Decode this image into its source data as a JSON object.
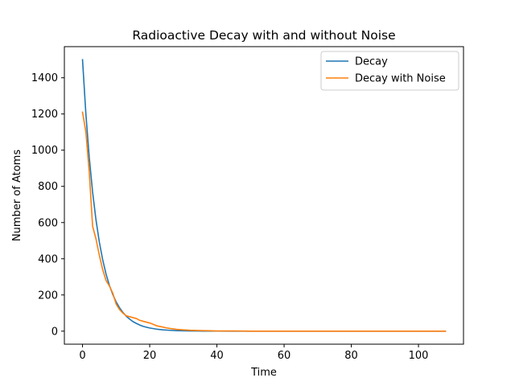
{
  "chart_data": {
    "type": "line",
    "title": "Radioactive Decay with and without Noise",
    "xlabel": "Time",
    "ylabel": "Number of Atoms",
    "xlim": [
      -5.4,
      113.4
    ],
    "ylim": [
      -72,
      1572
    ],
    "xticks": [
      0,
      20,
      40,
      60,
      80,
      100
    ],
    "yticks": [
      0,
      200,
      400,
      600,
      800,
      1000,
      1200,
      1400
    ],
    "grid": false,
    "legend_position": "top-right",
    "series": [
      {
        "name": "Decay",
        "color": "#1f77b4",
        "x": [
          0,
          1,
          2,
          3,
          4,
          5,
          6,
          7,
          8,
          9,
          10,
          11,
          12,
          13,
          14,
          15,
          16,
          17,
          18,
          19,
          20,
          22,
          24,
          26,
          28,
          30,
          32,
          34,
          36,
          38,
          40,
          45,
          50,
          55,
          60,
          70,
          80,
          90,
          100,
          108
        ],
        "y": [
          1500,
          1200,
          961,
          769,
          616,
          493,
          395,
          316,
          253,
          203,
          162,
          130,
          104,
          83,
          67,
          53,
          43,
          34,
          27,
          22,
          17.4,
          11.2,
          7.1,
          4.6,
          2.9,
          1.9,
          1.2,
          0.8,
          0.5,
          0.3,
          0.2,
          0.1,
          0,
          0,
          0,
          0,
          0,
          0,
          0,
          0
        ]
      },
      {
        "name": "Decay with Noise",
        "color": "#ff7f0e",
        "x": [
          0,
          1,
          2,
          3,
          4,
          5,
          6,
          7,
          8,
          9,
          10,
          11,
          12,
          13,
          14,
          15,
          16,
          17,
          18,
          19,
          20,
          21,
          22,
          23,
          24,
          25,
          26,
          28,
          30,
          32,
          34,
          36,
          38,
          40,
          45,
          50,
          55,
          60,
          70,
          80,
          90,
          100,
          108
        ],
        "y": [
          1210,
          1100,
          880,
          580,
          510,
          420,
          340,
          280,
          250,
          210,
          150,
          120,
          100,
          85,
          80,
          75,
          70,
          60,
          55,
          50,
          45,
          38,
          30,
          26,
          22,
          18,
          15,
          10,
          7,
          5,
          4,
          3,
          2,
          1,
          1,
          0,
          0,
          0,
          0,
          0,
          0,
          0,
          0
        ]
      }
    ]
  }
}
